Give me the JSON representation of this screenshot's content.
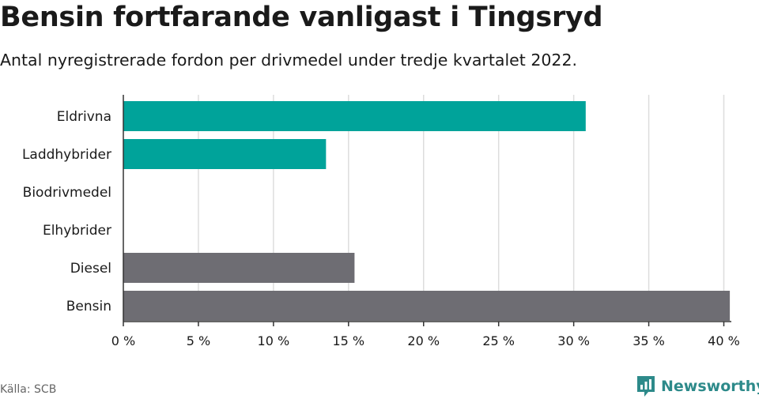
{
  "title": "Bensin fortfarande vanligast i Tingsryd",
  "subtitle": "Antal nyregistrerade fordon per drivmedel under tredje kvartalet 2022.",
  "source": "Källa: SCB",
  "brand": {
    "name": "Newsworthy",
    "icon": "newsworthy-logo-icon",
    "color": "#2d8a8a"
  },
  "colors": {
    "highlight": "#00a39a",
    "base": "#6e6d73",
    "grid": "#dddddd",
    "axis": "#333333"
  },
  "chart_data": {
    "type": "bar",
    "orientation": "horizontal",
    "categories": [
      "Eldrivna",
      "Laddhybrider",
      "Biodrivmedel",
      "Elhybrider",
      "Diesel",
      "Bensin"
    ],
    "values": [
      30.8,
      13.5,
      0,
      0,
      15.4,
      40.4
    ],
    "bar_colors": [
      "#00a39a",
      "#00a39a",
      "#00a39a",
      "#00a39a",
      "#6e6d73",
      "#6e6d73"
    ],
    "ticks": [
      0,
      5,
      10,
      15,
      20,
      25,
      30,
      35,
      40
    ],
    "tick_labels": [
      "0 %",
      "5 %",
      "10 %",
      "15 %",
      "20 %",
      "25 %",
      "30 %",
      "35 %",
      "40 %"
    ],
    "xlim": [
      0,
      40.5
    ],
    "grid": true
  }
}
